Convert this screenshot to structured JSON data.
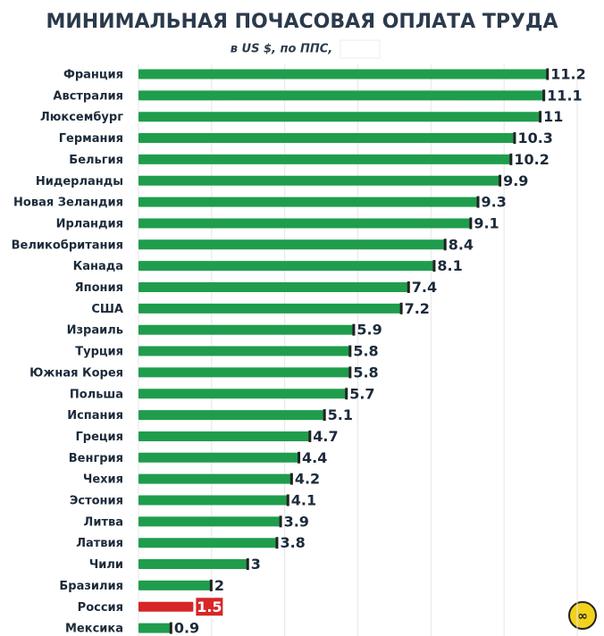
{
  "chart_data": {
    "type": "bar",
    "orientation": "horizontal",
    "title": "МИНИМАЛЬНАЯ ПОЧАСОВАЯ ОПЛАТА ТРУДА",
    "subtitle": "в US $, по ППС,",
    "categories": [
      "Франция",
      "Австралия",
      "Люксембург",
      "Германия",
      "Бельгия",
      "Нидерланды",
      "Новая Зеландия",
      "Ирландия",
      "Великобритания",
      "Канада",
      "Япония",
      "США",
      "Израиль",
      "Турция",
      "Южная Корея",
      "Польша",
      "Испания",
      "Греция",
      "Венгрия",
      "Чехия",
      "Эстония",
      "Литва",
      "Латвия",
      "Чили",
      "Бразилия",
      "Россия",
      "Мексика"
    ],
    "values": [
      11.2,
      11.1,
      11,
      10.3,
      10.2,
      9.9,
      9.3,
      9.1,
      8.4,
      8.1,
      7.4,
      7.2,
      5.9,
      5.8,
      5.8,
      5.7,
      5.1,
      4.7,
      4.4,
      4.2,
      4.1,
      3.9,
      3.8,
      3,
      2,
      1.5,
      0.9
    ],
    "colors": [
      "#1f9d4c",
      "#1f9d4c",
      "#1f9d4c",
      "#1f9d4c",
      "#1f9d4c",
      "#1f9d4c",
      "#1f9d4c",
      "#1f9d4c",
      "#1f9d4c",
      "#1f9d4c",
      "#1f9d4c",
      "#1f9d4c",
      "#1f9d4c",
      "#1f9d4c",
      "#1f9d4c",
      "#1f9d4c",
      "#1f9d4c",
      "#1f9d4c",
      "#1f9d4c",
      "#1f9d4c",
      "#1f9d4c",
      "#1f9d4c",
      "#1f9d4c",
      "#1f9d4c",
      "#1f9d4c",
      "#d62626",
      "#1f9d4c"
    ],
    "xlim": [
      0,
      12
    ],
    "xticks": [
      0,
      2,
      4,
      6,
      8,
      10,
      12
    ],
    "grid": true
  }
}
